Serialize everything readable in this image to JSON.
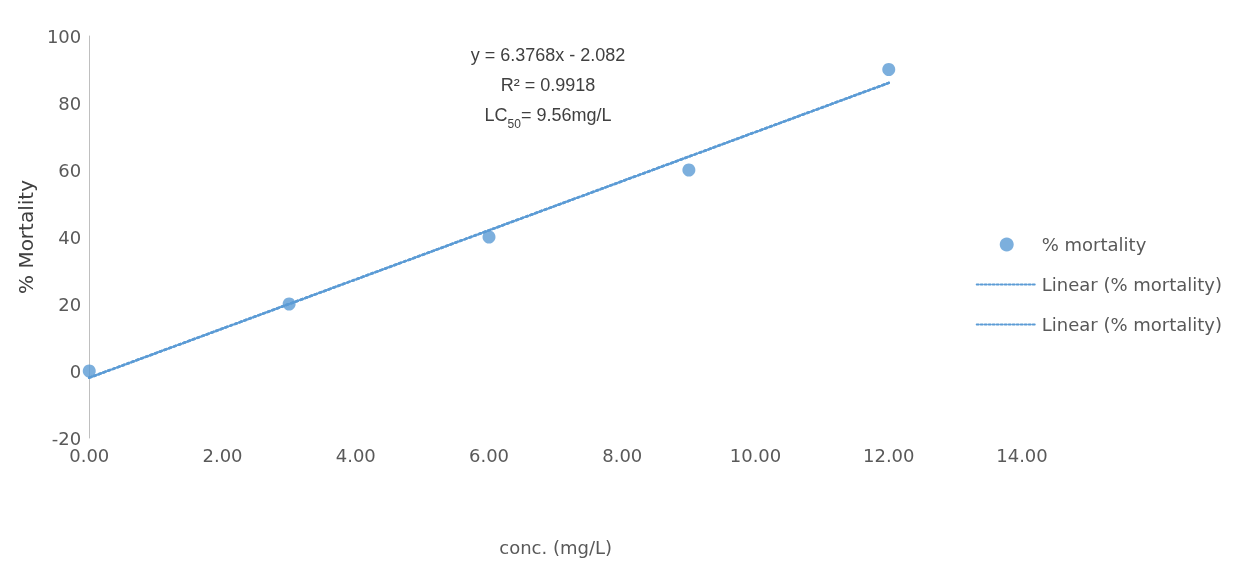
{
  "chart_data": {
    "type": "scatter",
    "xlabel": "conc. (mg/L)",
    "ylabel": "% Mortality",
    "annotations": [
      "y = 6.3768x - 2.082",
      "R² = 0.9918",
      "LC$_{50}$= 9.56mg/L"
    ],
    "series": [
      {
        "name": "% mortality",
        "color": "#5b9bd5",
        "x": [
          0,
          3,
          6,
          9,
          12
        ],
        "values": [
          0,
          20,
          40,
          60,
          90
        ],
        "marker": "circle"
      },
      {
        "name": "Linear (% mortality)",
        "type": "line",
        "color": "#5b9bd5",
        "x": [
          0,
          12
        ],
        "values": [
          -2,
          86
        ],
        "line_style": "dotted",
        "marker": "none"
      },
      {
        "name": "Linear (% mortality)",
        "type": "line",
        "color": "#5b9bd5",
        "x": [
          0,
          12
        ],
        "values": [
          -2,
          86
        ],
        "line_style": "dotted",
        "marker": "none"
      }
    ],
    "xlim": [
      0,
      14
    ],
    "xticks": [
      {
        "value": 0,
        "label": "0.00"
      },
      {
        "value": 2,
        "label": "2.00"
      },
      {
        "value": 4,
        "label": "4.00"
      },
      {
        "value": 6,
        "label": "6.00"
      },
      {
        "value": 8,
        "label": "8.00"
      },
      {
        "value": 10,
        "label": "10.00"
      },
      {
        "value": 12,
        "label": "12.00"
      },
      {
        "value": 14,
        "label": "14.00"
      }
    ],
    "ylim": [
      -20,
      100
    ],
    "yticks": [
      -20,
      0,
      20,
      40,
      60,
      80,
      100
    ],
    "grid": false,
    "legend": "right"
  }
}
